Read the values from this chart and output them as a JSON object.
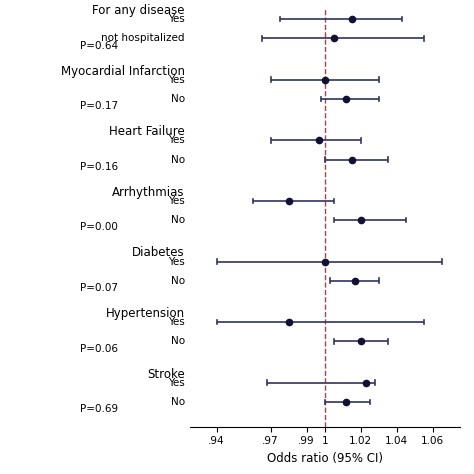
{
  "xlabel": "Odds ratio (95% CI)",
  "xlim": [
    0.925,
    1.075
  ],
  "xticks": [
    0.94,
    0.97,
    0.99,
    1.0,
    1.02,
    1.04,
    1.06
  ],
  "xticklabels": [
    ".94",
    ".97",
    ".99",
    "1",
    "1.02",
    "1.04",
    "1.06"
  ],
  "ref_line": 1.0,
  "groups": [
    {
      "label": "For any disease",
      "rows": [
        {
          "subgroup": "Yes",
          "est": 1.015,
          "lo": 0.975,
          "hi": 1.043,
          "p_label": null
        },
        {
          "subgroup": "not hospitalized",
          "est": 1.005,
          "lo": 0.965,
          "hi": 1.055,
          "p_label": "P=0.64"
        }
      ]
    },
    {
      "label": "Myocardial Infarction",
      "short_label": "yocardial Infarction",
      "rows": [
        {
          "subgroup": "Yes",
          "est": 1.0,
          "lo": 0.97,
          "hi": 1.03,
          "p_label": null
        },
        {
          "subgroup": "No",
          "est": 1.012,
          "lo": 0.998,
          "hi": 1.03,
          "p_label": "P=0.17"
        }
      ]
    },
    {
      "label": "Heart Failure",
      "rows": [
        {
          "subgroup": "Yes",
          "est": 0.997,
          "lo": 0.97,
          "hi": 1.02,
          "p_label": null
        },
        {
          "subgroup": "No",
          "est": 1.015,
          "lo": 1.0,
          "hi": 1.035,
          "p_label": "P=0.16"
        }
      ]
    },
    {
      "label": "Arrhythmias",
      "rows": [
        {
          "subgroup": "Yes",
          "est": 0.98,
          "lo": 0.96,
          "hi": 1.005,
          "p_label": null
        },
        {
          "subgroup": "No",
          "est": 1.02,
          "lo": 1.005,
          "hi": 1.045,
          "p_label": "P=0.00"
        }
      ]
    },
    {
      "label": "Diabetes",
      "rows": [
        {
          "subgroup": "Yes",
          "est": 1.0,
          "lo": 0.94,
          "hi": 1.065,
          "p_label": null
        },
        {
          "subgroup": "No",
          "est": 1.017,
          "lo": 1.003,
          "hi": 1.03,
          "p_label": "P=0.07"
        }
      ]
    },
    {
      "label": "Hypertension",
      "rows": [
        {
          "subgroup": "Yes",
          "est": 0.98,
          "lo": 0.94,
          "hi": 1.055,
          "p_label": null
        },
        {
          "subgroup": "No",
          "est": 1.02,
          "lo": 1.005,
          "hi": 1.035,
          "p_label": "P=0.06"
        }
      ]
    },
    {
      "label": "Stroke",
      "rows": [
        {
          "subgroup": "Yes",
          "est": 1.023,
          "lo": 0.968,
          "hi": 1.028,
          "p_label": null
        },
        {
          "subgroup": "No",
          "est": 1.012,
          "lo": 1.0,
          "hi": 1.025,
          "p_label": "P=0.69"
        }
      ]
    }
  ],
  "dot_color": "#111133",
  "line_color": "#2d3561",
  "ref_color": "#aa4444",
  "bg_color": "#ffffff",
  "sub_fontsize": 7.5,
  "group_fontsize": 8.5,
  "p_fontsize": 7.5,
  "tick_fontsize": 7.5,
  "xlabel_fontsize": 8.5
}
